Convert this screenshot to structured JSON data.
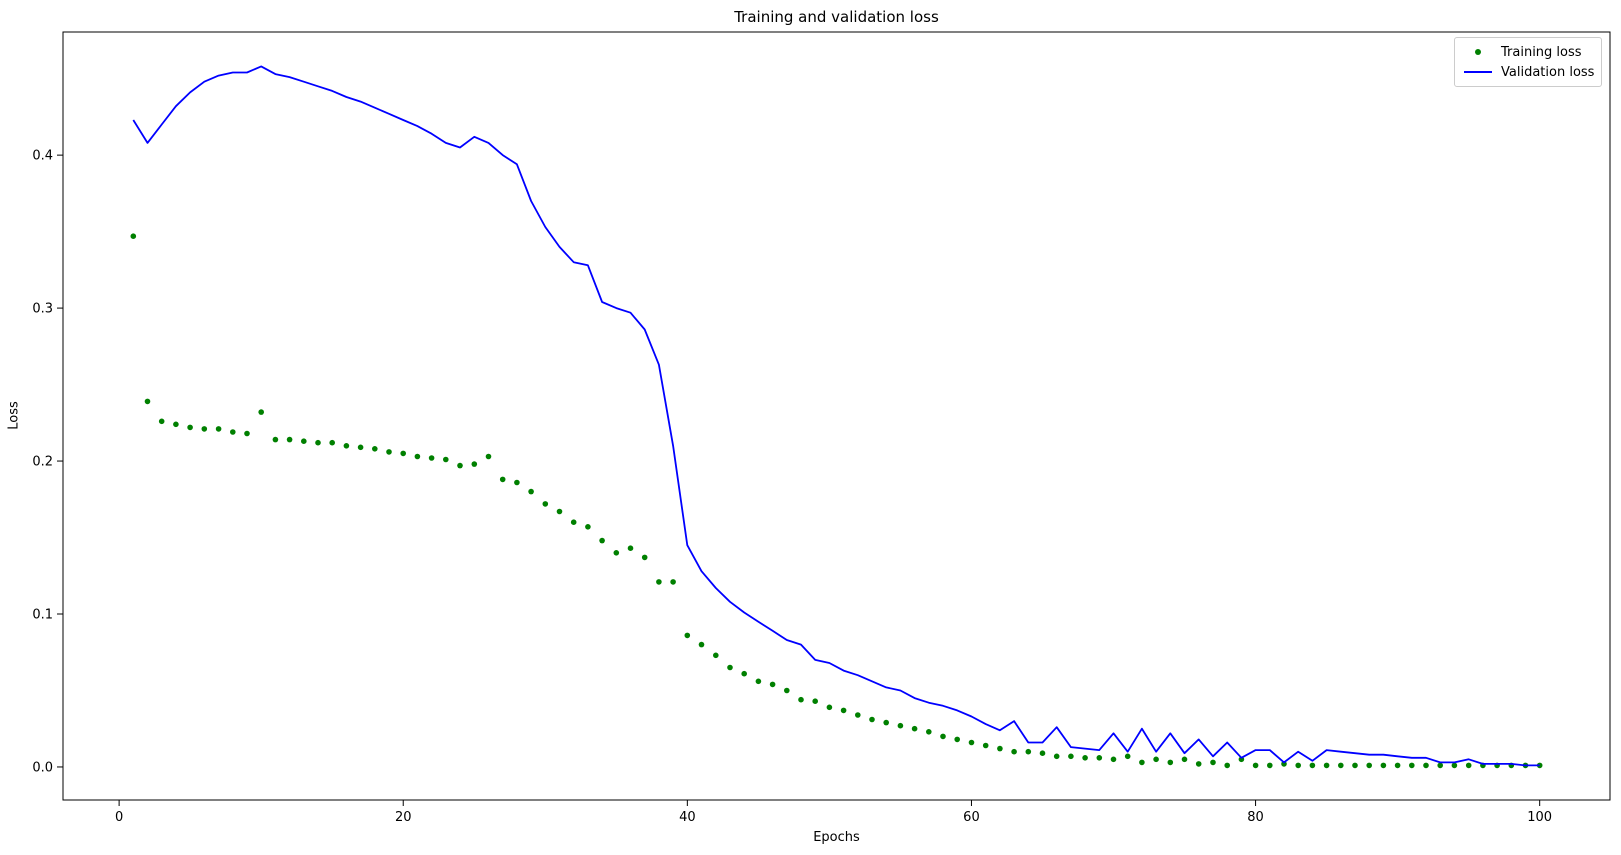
{
  "figure": {
    "background": "#ffffff"
  },
  "chart_data": {
    "type": "line",
    "title": "Training and validation loss",
    "xlabel": "Epochs",
    "ylabel": "Loss",
    "xlim": [
      -3.95,
      104.95
    ],
    "ylim": [
      -0.0216,
      0.4805
    ],
    "xticks": [
      0,
      20,
      40,
      60,
      80,
      100
    ],
    "yticks": [
      0.0,
      0.1,
      0.2,
      0.3,
      0.4
    ],
    "grid": false,
    "legend_position": "upper right",
    "x": [
      1,
      2,
      3,
      4,
      5,
      6,
      7,
      8,
      9,
      10,
      11,
      12,
      13,
      14,
      15,
      16,
      17,
      18,
      19,
      20,
      21,
      22,
      23,
      24,
      25,
      26,
      27,
      28,
      29,
      30,
      31,
      32,
      33,
      34,
      35,
      36,
      37,
      38,
      39,
      40,
      41,
      42,
      43,
      44,
      45,
      46,
      47,
      48,
      49,
      50,
      51,
      52,
      53,
      54,
      55,
      56,
      57,
      58,
      59,
      60,
      61,
      62,
      63,
      64,
      65,
      66,
      67,
      68,
      69,
      70,
      71,
      72,
      73,
      74,
      75,
      76,
      77,
      78,
      79,
      80,
      81,
      82,
      83,
      84,
      85,
      86,
      87,
      88,
      89,
      90,
      91,
      92,
      93,
      94,
      95,
      96,
      97,
      98,
      99,
      100
    ],
    "series": [
      {
        "name": "Training loss",
        "plot_style": "scatter",
        "marker": "dot",
        "color": "#008000",
        "values": [
          0.347,
          0.239,
          0.226,
          0.224,
          0.222,
          0.221,
          0.221,
          0.219,
          0.218,
          0.232,
          0.214,
          0.214,
          0.213,
          0.212,
          0.212,
          0.21,
          0.209,
          0.208,
          0.206,
          0.205,
          0.203,
          0.202,
          0.201,
          0.197,
          0.198,
          0.203,
          0.188,
          0.186,
          0.18,
          0.172,
          0.167,
          0.16,
          0.157,
          0.148,
          0.14,
          0.143,
          0.137,
          0.121,
          0.121,
          0.086,
          0.08,
          0.073,
          0.065,
          0.061,
          0.056,
          0.054,
          0.05,
          0.044,
          0.043,
          0.039,
          0.037,
          0.034,
          0.031,
          0.029,
          0.027,
          0.025,
          0.023,
          0.02,
          0.018,
          0.016,
          0.014,
          0.012,
          0.01,
          0.01,
          0.009,
          0.007,
          0.007,
          0.006,
          0.006,
          0.005,
          0.007,
          0.003,
          0.005,
          0.003,
          0.005,
          0.002,
          0.003,
          0.001,
          0.005,
          0.001,
          0.001,
          0.002,
          0.001,
          0.001,
          0.001,
          0.001,
          0.001,
          0.001,
          0.001,
          0.001,
          0.001,
          0.001,
          0.001,
          0.001,
          0.001,
          0.001,
          0.001,
          0.001,
          0.001,
          0.001
        ]
      },
      {
        "name": "Validation loss",
        "plot_style": "line",
        "color": "#0000ff",
        "values": [
          0.423,
          0.408,
          0.42,
          0.432,
          0.441,
          0.448,
          0.452,
          0.454,
          0.454,
          0.458,
          0.453,
          0.451,
          0.448,
          0.445,
          0.442,
          0.438,
          0.435,
          0.431,
          0.427,
          0.423,
          0.419,
          0.414,
          0.408,
          0.405,
          0.412,
          0.408,
          0.4,
          0.394,
          0.37,
          0.353,
          0.34,
          0.33,
          0.328,
          0.304,
          0.3,
          0.297,
          0.286,
          0.263,
          0.21,
          0.145,
          0.128,
          0.117,
          0.108,
          0.101,
          0.095,
          0.089,
          0.083,
          0.08,
          0.07,
          0.068,
          0.063,
          0.06,
          0.056,
          0.052,
          0.05,
          0.045,
          0.042,
          0.04,
          0.037,
          0.033,
          0.028,
          0.024,
          0.03,
          0.016,
          0.016,
          0.026,
          0.013,
          0.012,
          0.011,
          0.022,
          0.01,
          0.025,
          0.01,
          0.022,
          0.009,
          0.018,
          0.007,
          0.016,
          0.006,
          0.011,
          0.011,
          0.003,
          0.01,
          0.004,
          0.011,
          0.01,
          0.009,
          0.008,
          0.008,
          0.007,
          0.006,
          0.006,
          0.003,
          0.003,
          0.005,
          0.002,
          0.002,
          0.002,
          0.001,
          0.001
        ]
      }
    ]
  }
}
